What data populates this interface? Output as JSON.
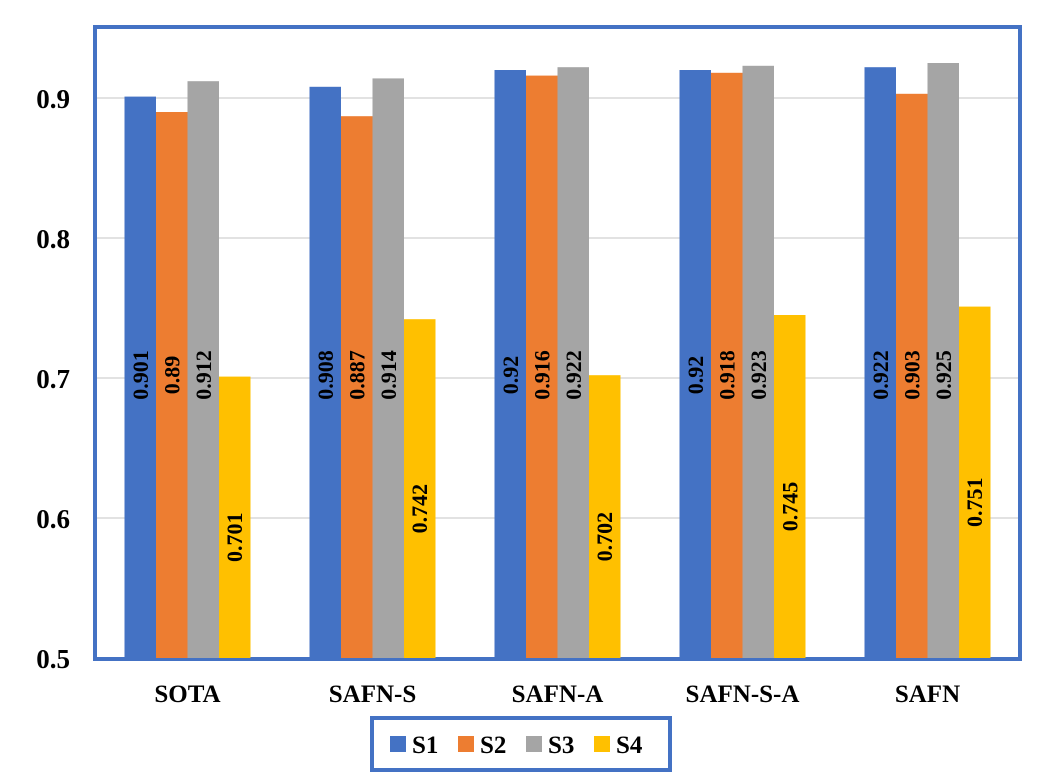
{
  "chart_data": {
    "type": "bar",
    "title": "",
    "xlabel": "",
    "ylabel": "",
    "ylim": [
      0.5,
      0.95
    ],
    "yticks": [
      0.5,
      0.6,
      0.7,
      0.8,
      0.9
    ],
    "ytick_labels": [
      "0.5",
      "0.6",
      "0.7",
      "0.8",
      "0.9"
    ],
    "grid": true,
    "legend_position": "bottom",
    "categories": [
      "SOTA",
      "SAFN-S",
      "SAFN-A",
      "SAFN-S-A",
      "SAFN"
    ],
    "series": [
      {
        "name": "S1",
        "color": "#4472C4",
        "values": [
          0.901,
          0.908,
          0.92,
          0.92,
          0.922
        ],
        "labels": [
          "0.901",
          "0.908",
          "0.92",
          "0.92",
          "0.922"
        ]
      },
      {
        "name": "S2",
        "color": "#ED7D31",
        "values": [
          0.89,
          0.887,
          0.916,
          0.918,
          0.903
        ],
        "labels": [
          "0.89",
          "0.887",
          "0.916",
          "0.918",
          "0.903"
        ]
      },
      {
        "name": "S3",
        "color": "#A5A5A5",
        "values": [
          0.912,
          0.914,
          0.922,
          0.923,
          0.925
        ],
        "labels": [
          "0.912",
          "0.914",
          "0.922",
          "0.923",
          "0.925"
        ]
      },
      {
        "name": "S4",
        "color": "#FFC000",
        "values": [
          0.701,
          0.742,
          0.702,
          0.745,
          0.751
        ],
        "labels": [
          "0.701",
          "0.742",
          "0.702",
          "0.745",
          "0.751"
        ]
      }
    ],
    "frame_color": "#4472C4",
    "grid_color": "#D9D9D9"
  }
}
